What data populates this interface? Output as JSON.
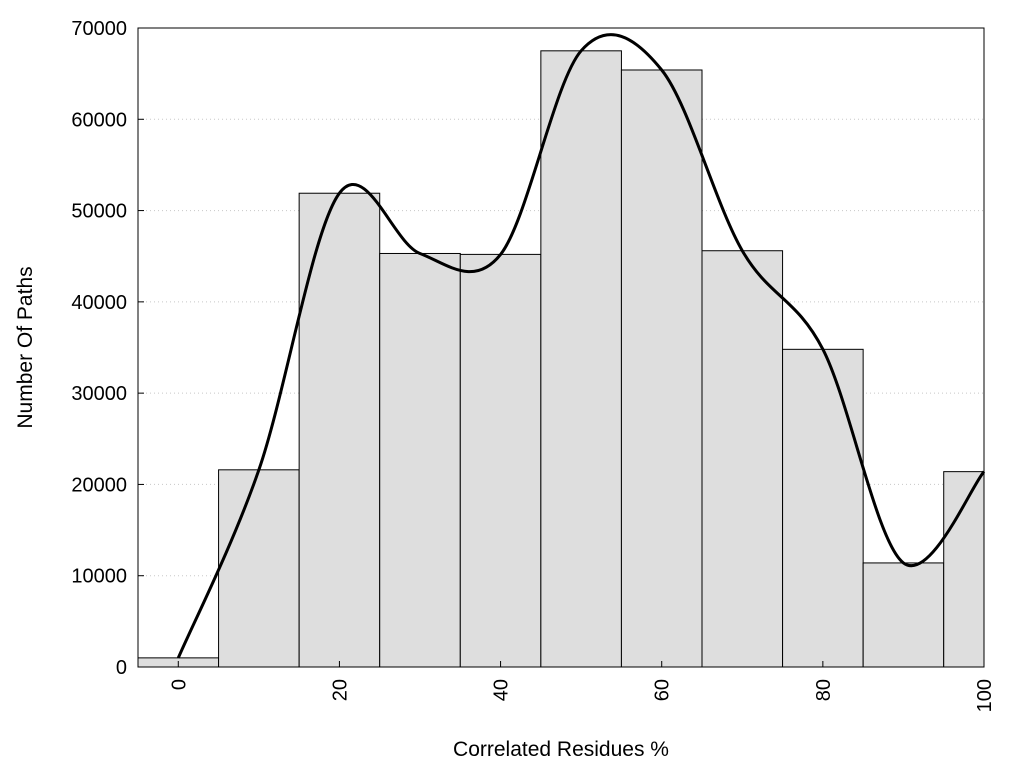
{
  "chart_data": {
    "type": "bar",
    "title": "",
    "xlabel": "Correlated Residues %",
    "ylabel": "Number Of Paths",
    "x": [
      0,
      10,
      20,
      30,
      40,
      50,
      60,
      70,
      80,
      90,
      100
    ],
    "values": [
      1000,
      21600,
      51900,
      45300,
      45200,
      67500,
      65400,
      45600,
      34800,
      11400,
      21400
    ],
    "xlim": [
      -5,
      100
    ],
    "ylim": [
      0,
      70000
    ],
    "xticks": [
      0,
      20,
      40,
      60,
      80,
      100
    ],
    "yticks": [
      0,
      10000,
      20000,
      30000,
      40000,
      50000,
      60000,
      70000
    ],
    "bar_width": 10,
    "grid": "horizontal dotted",
    "smooth_curve": true,
    "colors": {
      "bar_fill": "#dedede",
      "bar_edge": "#000000",
      "curve": "#000000"
    }
  }
}
